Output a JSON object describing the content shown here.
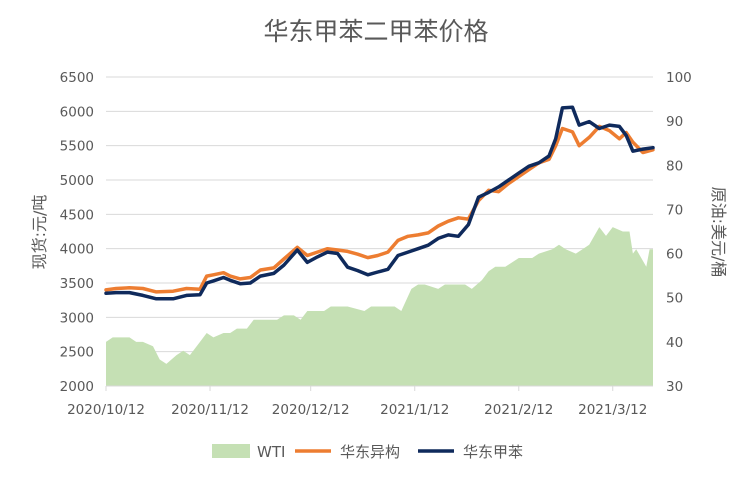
{
  "chart_data": {
    "type": "line",
    "title": "华东甲苯二甲苯价格",
    "xlabel": "",
    "ylabel_left": "现货:元/吨",
    "ylabel_right": "原油:美元/桶",
    "x_start": "2020-10-12",
    "x_end": "2021-03-24",
    "x_ticks": [
      "2020/10/12",
      "2020/11/12",
      "2020/12/12",
      "2021/1/12",
      "2021/2/12",
      "2021/3/12"
    ],
    "x_tick_dates": [
      "2020-10-12",
      "2020-11-12",
      "2020-12-12",
      "2021-01-12",
      "2021-02-12",
      "2021-03-12"
    ],
    "y_left_ticks": [
      "2000",
      "2500",
      "3000",
      "3500",
      "4000",
      "4500",
      "5000",
      "5500",
      "6000",
      "6500"
    ],
    "y_right_ticks": [
      "30",
      "40",
      "50",
      "60",
      "70",
      "80",
      "90",
      "100"
    ],
    "ylim_left": [
      2000,
      6500
    ],
    "ylim_right": [
      30,
      100
    ],
    "grid": "horizontal",
    "legend_position": "bottom",
    "colors": {
      "WTI": "#c5e0b4",
      "华东异构": "#ed7d31",
      "华东甲苯": "#0f2a5c"
    },
    "series": [
      {
        "name": "WTI",
        "type": "area",
        "axis": "right",
        "x": [
          "2020-10-12",
          "2020-10-14",
          "2020-10-16",
          "2020-10-19",
          "2020-10-21",
          "2020-10-23",
          "2020-10-26",
          "2020-10-28",
          "2020-10-30",
          "2020-11-02",
          "2020-11-04",
          "2020-11-06",
          "2020-11-09",
          "2020-11-11",
          "2020-11-13",
          "2020-11-16",
          "2020-11-18",
          "2020-11-20",
          "2020-11-23",
          "2020-11-25",
          "2020-11-27",
          "2020-11-30",
          "2020-12-02",
          "2020-12-04",
          "2020-12-07",
          "2020-12-09",
          "2020-12-11",
          "2020-12-14",
          "2020-12-16",
          "2020-12-18",
          "2020-12-21",
          "2020-12-23",
          "2020-12-28",
          "2020-12-30",
          "2021-01-04",
          "2021-01-06",
          "2021-01-08",
          "2021-01-11",
          "2021-01-13",
          "2021-01-15",
          "2021-01-19",
          "2021-01-21",
          "2021-01-25",
          "2021-01-27",
          "2021-01-29",
          "2021-02-01",
          "2021-02-03",
          "2021-02-05",
          "2021-02-08",
          "2021-02-10",
          "2021-02-12",
          "2021-02-16",
          "2021-02-18",
          "2021-02-22",
          "2021-02-24",
          "2021-02-26",
          "2021-03-01",
          "2021-03-03",
          "2021-03-05",
          "2021-03-08",
          "2021-03-10",
          "2021-03-12",
          "2021-03-15",
          "2021-03-17",
          "2021-03-18",
          "2021-03-19",
          "2021-03-22",
          "2021-03-23",
          "2021-03-24"
        ],
        "values": [
          40,
          41,
          41,
          41,
          40,
          40,
          39,
          36,
          35,
          37,
          38,
          37,
          40,
          42,
          41,
          42,
          42,
          43,
          43,
          45,
          45,
          45,
          45,
          46,
          46,
          45,
          47,
          47,
          47,
          48,
          48,
          48,
          47,
          48,
          48,
          48,
          47,
          52,
          53,
          53,
          52,
          53,
          53,
          53,
          52,
          54,
          56,
          57,
          57,
          58,
          59,
          59,
          60,
          61,
          62,
          61,
          60,
          61,
          62,
          66,
          64,
          66,
          65,
          65,
          60,
          61,
          57,
          61,
          61
        ]
      },
      {
        "name": "华东异构",
        "type": "line",
        "axis": "left",
        "x": [
          "2020-10-12",
          "2020-10-15",
          "2020-10-19",
          "2020-10-23",
          "2020-10-27",
          "2020-11-01",
          "2020-11-05",
          "2020-11-09",
          "2020-11-11",
          "2020-11-13",
          "2020-11-16",
          "2020-11-18",
          "2020-11-21",
          "2020-11-24",
          "2020-11-27",
          "2020-12-01",
          "2020-12-04",
          "2020-12-08",
          "2020-12-11",
          "2020-12-14",
          "2020-12-17",
          "2020-12-20",
          "2020-12-23",
          "2020-12-26",
          "2020-12-29",
          "2021-01-01",
          "2021-01-04",
          "2021-01-07",
          "2021-01-10",
          "2021-01-13",
          "2021-01-16",
          "2021-01-19",
          "2021-01-22",
          "2021-01-25",
          "2021-01-28",
          "2021-01-31",
          "2021-02-03",
          "2021-02-06",
          "2021-02-09",
          "2021-02-12",
          "2021-02-15",
          "2021-02-18",
          "2021-02-21",
          "2021-02-23",
          "2021-02-25",
          "2021-02-28",
          "2021-03-02",
          "2021-03-05",
          "2021-03-08",
          "2021-03-11",
          "2021-03-14",
          "2021-03-16",
          "2021-03-18",
          "2021-03-21",
          "2021-03-24"
        ],
        "values": [
          3400,
          3420,
          3430,
          3420,
          3370,
          3380,
          3420,
          3410,
          3600,
          3620,
          3650,
          3600,
          3560,
          3580,
          3690,
          3720,
          3850,
          4020,
          3900,
          3950,
          4000,
          3980,
          3960,
          3920,
          3870,
          3900,
          3950,
          4120,
          4180,
          4200,
          4230,
          4330,
          4400,
          4450,
          4430,
          4700,
          4850,
          4830,
          4950,
          5050,
          5150,
          5250,
          5300,
          5500,
          5750,
          5700,
          5500,
          5620,
          5780,
          5720,
          5600,
          5690,
          5550,
          5400,
          5440
        ]
      },
      {
        "name": "华东甲苯",
        "type": "line",
        "axis": "left",
        "x": [
          "2020-10-12",
          "2020-10-15",
          "2020-10-19",
          "2020-10-23",
          "2020-10-27",
          "2020-11-01",
          "2020-11-05",
          "2020-11-09",
          "2020-11-11",
          "2020-11-13",
          "2020-11-16",
          "2020-11-18",
          "2020-11-21",
          "2020-11-24",
          "2020-11-27",
          "2020-12-01",
          "2020-12-04",
          "2020-12-08",
          "2020-12-11",
          "2020-12-14",
          "2020-12-17",
          "2020-12-20",
          "2020-12-23",
          "2020-12-26",
          "2020-12-29",
          "2021-01-01",
          "2021-01-04",
          "2021-01-07",
          "2021-01-10",
          "2021-01-13",
          "2021-01-16",
          "2021-01-19",
          "2021-01-22",
          "2021-01-25",
          "2021-01-28",
          "2021-01-31",
          "2021-02-03",
          "2021-02-06",
          "2021-02-09",
          "2021-02-12",
          "2021-02-15",
          "2021-02-18",
          "2021-02-21",
          "2021-02-23",
          "2021-02-25",
          "2021-02-28",
          "2021-03-02",
          "2021-03-05",
          "2021-03-08",
          "2021-03-11",
          "2021-03-14",
          "2021-03-16",
          "2021-03-18",
          "2021-03-21",
          "2021-03-24"
        ],
        "values": [
          3350,
          3360,
          3360,
          3320,
          3270,
          3270,
          3320,
          3330,
          3500,
          3530,
          3580,
          3540,
          3490,
          3500,
          3600,
          3640,
          3760,
          3980,
          3800,
          3880,
          3950,
          3930,
          3730,
          3680,
          3620,
          3660,
          3700,
          3900,
          3950,
          4000,
          4050,
          4150,
          4200,
          4180,
          4350,
          4750,
          4820,
          4900,
          5000,
          5100,
          5200,
          5250,
          5350,
          5600,
          6050,
          6060,
          5800,
          5850,
          5750,
          5800,
          5780,
          5650,
          5420,
          5450,
          5470
        ]
      }
    ]
  }
}
